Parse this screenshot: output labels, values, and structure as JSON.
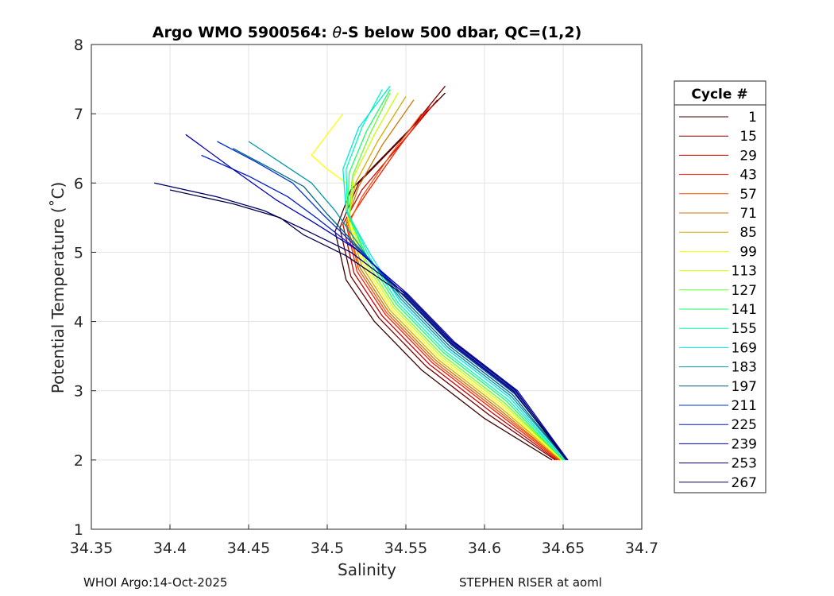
{
  "chart_data": {
    "type": "line",
    "title_prefix": "Argo WMO 5900564: ",
    "title_theta": "θ",
    "title_suffix": "-S below 500 dbar,  QC=(1,2)",
    "xlabel": "Salinity",
    "ylabel": "Potential Temperature (˚C)",
    "xlim": [
      34.35,
      34.7
    ],
    "ylim": [
      1,
      8
    ],
    "xticks": [
      "34.35",
      "34.4",
      "34.45",
      "34.5",
      "34.55",
      "34.6",
      "34.65",
      "34.7"
    ],
    "yticks": [
      "1",
      "2",
      "3",
      "4",
      "5",
      "6",
      "7",
      "8"
    ],
    "grid": true,
    "legend_title": "Cycle #",
    "legend_position": "outside-right",
    "series": [
      {
        "name": "1",
        "color": "#3b0000",
        "points": [
          [
            34.575,
            7.3
          ],
          [
            34.545,
            6.6
          ],
          [
            34.515,
            5.9
          ],
          [
            34.505,
            5.3
          ],
          [
            34.512,
            4.6
          ],
          [
            34.53,
            4.0
          ],
          [
            34.56,
            3.3
          ],
          [
            34.6,
            2.6
          ],
          [
            34.643,
            2.0
          ]
        ]
      },
      {
        "name": "15",
        "color": "#7a0000",
        "points": [
          [
            34.575,
            7.4
          ],
          [
            34.55,
            6.7
          ],
          [
            34.52,
            6.0
          ],
          [
            34.508,
            5.35
          ],
          [
            34.515,
            4.65
          ],
          [
            34.533,
            4.05
          ],
          [
            34.563,
            3.35
          ],
          [
            34.603,
            2.65
          ],
          [
            34.645,
            2.0
          ]
        ]
      },
      {
        "name": "29",
        "color": "#c80000",
        "points": [
          [
            34.57,
            7.2
          ],
          [
            34.548,
            6.6
          ],
          [
            34.522,
            5.9
          ],
          [
            34.51,
            5.4
          ],
          [
            34.517,
            4.7
          ],
          [
            34.535,
            4.08
          ],
          [
            34.565,
            3.38
          ],
          [
            34.605,
            2.68
          ],
          [
            34.646,
            2.0
          ]
        ]
      },
      {
        "name": "43",
        "color": "#ff1a00",
        "points": [
          [
            34.565,
            7.1
          ],
          [
            34.545,
            6.5
          ],
          [
            34.525,
            5.85
          ],
          [
            34.512,
            5.4
          ],
          [
            34.519,
            4.72
          ],
          [
            34.537,
            4.1
          ],
          [
            34.567,
            3.4
          ],
          [
            34.607,
            2.7
          ],
          [
            34.647,
            2.0
          ]
        ]
      },
      {
        "name": "57",
        "color": "#ff4d00",
        "points": [
          [
            34.56,
            7.0
          ],
          [
            34.54,
            6.4
          ],
          [
            34.522,
            5.8
          ],
          [
            34.513,
            5.38
          ],
          [
            34.52,
            4.75
          ],
          [
            34.538,
            4.12
          ],
          [
            34.568,
            3.42
          ],
          [
            34.608,
            2.72
          ],
          [
            34.648,
            2.0
          ]
        ]
      },
      {
        "name": "71",
        "color": "#cc7700",
        "points": [
          [
            34.555,
            7.2
          ],
          [
            34.535,
            6.55
          ],
          [
            34.52,
            5.95
          ],
          [
            34.512,
            5.42
          ],
          [
            34.521,
            4.77
          ],
          [
            34.539,
            4.14
          ],
          [
            34.569,
            3.44
          ],
          [
            34.609,
            2.74
          ],
          [
            34.648,
            2.0
          ]
        ]
      },
      {
        "name": "85",
        "color": "#d4aa00",
        "points": [
          [
            34.55,
            7.25
          ],
          [
            34.532,
            6.6
          ],
          [
            34.518,
            6.0
          ],
          [
            34.513,
            5.45
          ],
          [
            34.522,
            4.8
          ],
          [
            34.54,
            4.16
          ],
          [
            34.57,
            3.46
          ],
          [
            34.61,
            2.76
          ],
          [
            34.649,
            2.0
          ]
        ]
      },
      {
        "name": "99",
        "color": "#ffff00",
        "points": [
          [
            34.51,
            7.0
          ],
          [
            34.49,
            6.4
          ],
          [
            34.5,
            6.2
          ],
          [
            34.512,
            6.0
          ],
          [
            34.513,
            5.5
          ],
          [
            34.523,
            4.82
          ],
          [
            34.541,
            4.18
          ],
          [
            34.571,
            3.48
          ],
          [
            34.611,
            2.78
          ],
          [
            34.649,
            2.0
          ]
        ]
      },
      {
        "name": "113",
        "color": "#ccff00",
        "points": [
          [
            34.545,
            7.3
          ],
          [
            34.53,
            6.7
          ],
          [
            34.517,
            6.1
          ],
          [
            34.514,
            5.5
          ],
          [
            34.524,
            4.85
          ],
          [
            34.542,
            4.2
          ],
          [
            34.572,
            3.5
          ],
          [
            34.612,
            2.8
          ],
          [
            34.65,
            2.0
          ]
        ]
      },
      {
        "name": "127",
        "color": "#66ff33",
        "points": [
          [
            34.54,
            7.3
          ],
          [
            34.527,
            6.7
          ],
          [
            34.516,
            6.1
          ],
          [
            34.514,
            5.55
          ],
          [
            34.525,
            4.87
          ],
          [
            34.543,
            4.22
          ],
          [
            34.573,
            3.52
          ],
          [
            34.613,
            2.82
          ],
          [
            34.65,
            2.0
          ]
        ]
      },
      {
        "name": "141",
        "color": "#1aff66",
        "points": [
          [
            34.54,
            7.35
          ],
          [
            34.525,
            6.75
          ],
          [
            34.514,
            6.15
          ],
          [
            34.513,
            5.55
          ],
          [
            34.526,
            4.9
          ],
          [
            34.544,
            4.25
          ],
          [
            34.574,
            3.55
          ],
          [
            34.614,
            2.85
          ],
          [
            34.65,
            2.0
          ]
        ]
      },
      {
        "name": "155",
        "color": "#00ffb3",
        "points": [
          [
            34.535,
            7.35
          ],
          [
            34.522,
            6.8
          ],
          [
            34.512,
            6.2
          ],
          [
            34.513,
            5.58
          ],
          [
            34.527,
            4.92
          ],
          [
            34.545,
            4.27
          ],
          [
            34.575,
            3.57
          ],
          [
            34.615,
            2.87
          ],
          [
            34.651,
            2.0
          ]
        ]
      },
      {
        "name": "169",
        "color": "#00e6e6",
        "points": [
          [
            34.54,
            7.4
          ],
          [
            34.52,
            6.8
          ],
          [
            34.51,
            6.2
          ],
          [
            34.512,
            5.6
          ],
          [
            34.528,
            4.95
          ],
          [
            34.546,
            4.3
          ],
          [
            34.576,
            3.6
          ],
          [
            34.616,
            2.9
          ],
          [
            34.651,
            2.0
          ]
        ]
      },
      {
        "name": "183",
        "color": "#0099aa",
        "points": [
          [
            34.45,
            6.6
          ],
          [
            34.47,
            6.3
          ],
          [
            34.49,
            6.0
          ],
          [
            34.505,
            5.6
          ],
          [
            34.525,
            4.95
          ],
          [
            34.547,
            4.32
          ],
          [
            34.577,
            3.62
          ],
          [
            34.617,
            2.92
          ],
          [
            34.652,
            2.0
          ]
        ]
      },
      {
        "name": "197",
        "color": "#006688",
        "points": [
          [
            34.44,
            6.5
          ],
          [
            34.465,
            6.2
          ],
          [
            34.485,
            5.95
          ],
          [
            34.5,
            5.55
          ],
          [
            34.524,
            4.97
          ],
          [
            34.548,
            4.34
          ],
          [
            34.578,
            3.64
          ],
          [
            34.618,
            2.94
          ],
          [
            34.652,
            2.0
          ]
        ]
      },
      {
        "name": "211",
        "color": "#0033cc",
        "points": [
          [
            34.43,
            6.6
          ],
          [
            34.455,
            6.3
          ],
          [
            34.478,
            6.0
          ],
          [
            34.497,
            5.55
          ],
          [
            34.522,
            5.0
          ],
          [
            34.549,
            4.36
          ],
          [
            34.579,
            3.66
          ],
          [
            34.619,
            2.96
          ],
          [
            34.653,
            2.0
          ]
        ]
      },
      {
        "name": "225",
        "color": "#001acc",
        "points": [
          [
            34.42,
            6.4
          ],
          [
            34.45,
            6.1
          ],
          [
            34.475,
            5.8
          ],
          [
            34.493,
            5.5
          ],
          [
            34.52,
            5.02
          ],
          [
            34.55,
            4.38
          ],
          [
            34.58,
            3.68
          ],
          [
            34.62,
            2.98
          ],
          [
            34.653,
            2.0
          ]
        ]
      },
      {
        "name": "239",
        "color": "#0000b3",
        "points": [
          [
            34.41,
            6.7
          ],
          [
            34.44,
            6.2
          ],
          [
            34.468,
            5.75
          ],
          [
            34.49,
            5.45
          ],
          [
            34.518,
            5.05
          ],
          [
            34.551,
            4.4
          ],
          [
            34.581,
            3.7
          ],
          [
            34.621,
            3.0
          ],
          [
            34.653,
            2.0
          ]
        ]
      },
      {
        "name": "253",
        "color": "#000066",
        "points": [
          [
            34.39,
            6.0
          ],
          [
            34.43,
            5.8
          ],
          [
            34.46,
            5.6
          ],
          [
            34.488,
            5.3
          ],
          [
            34.515,
            5.0
          ],
          [
            34.55,
            4.4
          ],
          [
            34.58,
            3.7
          ],
          [
            34.62,
            3.0
          ],
          [
            34.652,
            2.0
          ]
        ]
      },
      {
        "name": "267",
        "color": "#000044",
        "points": [
          [
            34.4,
            5.9
          ],
          [
            34.44,
            5.7
          ],
          [
            34.47,
            5.5
          ],
          [
            34.485,
            5.25
          ],
          [
            34.512,
            4.95
          ],
          [
            34.549,
            4.38
          ],
          [
            34.579,
            3.68
          ],
          [
            34.619,
            2.98
          ],
          [
            34.652,
            2.0
          ]
        ]
      }
    ]
  },
  "footer": {
    "left": "WHOI Argo:14-Oct-2025",
    "right": "STEPHEN RISER at aoml"
  }
}
